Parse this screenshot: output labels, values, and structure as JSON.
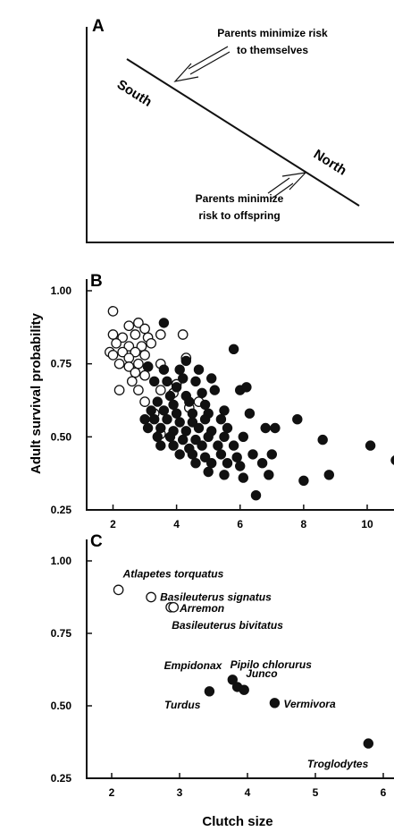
{
  "ylabel": "Adult survival probability",
  "xlabel": "Clutch size",
  "colors": {
    "ink": "#111111",
    "open_fill": "#ffffff",
    "filled": "#111111"
  },
  "chart_data": [
    {
      "type": "diagram",
      "panel": "A",
      "line_labels": {
        "start": "South",
        "end": "North"
      },
      "annotations": [
        {
          "text_lines": [
            "Parents minimize risk",
            "to themselves"
          ]
        },
        {
          "text_lines": [
            "Parents minimize",
            "risk to offspring"
          ]
        }
      ]
    },
    {
      "type": "scatter",
      "panel": "B",
      "xlim": [
        1.2,
        11
      ],
      "ylim": [
        0.25,
        1.0
      ],
      "xticks": [
        2,
        4,
        6,
        8,
        10
      ],
      "yticks": [
        0.25,
        0.5,
        0.75,
        1.0
      ],
      "ytick_labels": [
        "0.25",
        "0.50",
        "0.75",
        "1.00"
      ],
      "series": [
        {
          "marker": "open",
          "points": [
            [
              2.0,
              0.93
            ],
            [
              2.5,
              0.88
            ],
            [
              2.8,
              0.89
            ],
            [
              3.0,
              0.87
            ],
            [
              3.5,
              0.85
            ],
            [
              4.2,
              0.85
            ],
            [
              2.0,
              0.85
            ],
            [
              2.3,
              0.84
            ],
            [
              2.7,
              0.85
            ],
            [
              3.1,
              0.84
            ],
            [
              2.9,
              0.81
            ],
            [
              3.2,
              0.82
            ],
            [
              2.1,
              0.82
            ],
            [
              2.5,
              0.81
            ],
            [
              1.9,
              0.79
            ],
            [
              2.3,
              0.79
            ],
            [
              2.7,
              0.79
            ],
            [
              3.0,
              0.78
            ],
            [
              2.0,
              0.78
            ],
            [
              2.5,
              0.77
            ],
            [
              2.2,
              0.75
            ],
            [
              2.8,
              0.75
            ],
            [
              3.5,
              0.75
            ],
            [
              2.5,
              0.74
            ],
            [
              3.1,
              0.74
            ],
            [
              4.3,
              0.77
            ],
            [
              2.7,
              0.72
            ],
            [
              3.0,
              0.71
            ],
            [
              2.6,
              0.69
            ],
            [
              2.2,
              0.66
            ],
            [
              2.8,
              0.66
            ],
            [
              3.5,
              0.66
            ],
            [
              4.0,
              0.68
            ],
            [
              3.0,
              0.62
            ],
            [
              3.3,
              0.58
            ],
            [
              3.9,
              0.65
            ],
            [
              4.7,
              0.62
            ],
            [
              3.5,
              0.51
            ],
            [
              4.4,
              0.6
            ]
          ]
        },
        {
          "marker": "filled",
          "points": [
            [
              3.6,
              0.89
            ],
            [
              5.8,
              0.8
            ],
            [
              3.1,
              0.74
            ],
            [
              3.6,
              0.73
            ],
            [
              4.1,
              0.73
            ],
            [
              4.3,
              0.76
            ],
            [
              4.7,
              0.73
            ],
            [
              3.3,
              0.69
            ],
            [
              3.7,
              0.69
            ],
            [
              4.2,
              0.7
            ],
            [
              4.6,
              0.69
            ],
            [
              5.1,
              0.7
            ],
            [
              4.0,
              0.67
            ],
            [
              3.8,
              0.64
            ],
            [
              4.3,
              0.64
            ],
            [
              4.8,
              0.65
            ],
            [
              5.2,
              0.66
            ],
            [
              6.0,
              0.66
            ],
            [
              6.2,
              0.67
            ],
            [
              3.4,
              0.62
            ],
            [
              3.9,
              0.61
            ],
            [
              4.4,
              0.62
            ],
            [
              4.9,
              0.61
            ],
            [
              3.2,
              0.59
            ],
            [
              3.6,
              0.59
            ],
            [
              4.0,
              0.58
            ],
            [
              4.5,
              0.58
            ],
            [
              5.0,
              0.58
            ],
            [
              5.5,
              0.59
            ],
            [
              3.0,
              0.56
            ],
            [
              3.3,
              0.56
            ],
            [
              3.7,
              0.56
            ],
            [
              4.1,
              0.55
            ],
            [
              4.5,
              0.55
            ],
            [
              4.9,
              0.56
            ],
            [
              5.4,
              0.56
            ],
            [
              6.3,
              0.58
            ],
            [
              3.1,
              0.53
            ],
            [
              3.5,
              0.53
            ],
            [
              3.9,
              0.52
            ],
            [
              4.3,
              0.52
            ],
            [
              4.7,
              0.53
            ],
            [
              5.1,
              0.52
            ],
            [
              5.6,
              0.53
            ],
            [
              3.4,
              0.5
            ],
            [
              3.8,
              0.5
            ],
            [
              4.2,
              0.49
            ],
            [
              4.6,
              0.49
            ],
            [
              5.0,
              0.5
            ],
            [
              5.5,
              0.5
            ],
            [
              6.1,
              0.5
            ],
            [
              3.5,
              0.47
            ],
            [
              3.9,
              0.47
            ],
            [
              4.4,
              0.46
            ],
            [
              4.8,
              0.47
            ],
            [
              5.3,
              0.47
            ],
            [
              5.8,
              0.47
            ],
            [
              4.1,
              0.44
            ],
            [
              4.5,
              0.44
            ],
            [
              4.9,
              0.43
            ],
            [
              5.4,
              0.44
            ],
            [
              5.9,
              0.43
            ],
            [
              6.4,
              0.44
            ],
            [
              4.6,
              0.41
            ],
            [
              5.1,
              0.41
            ],
            [
              5.6,
              0.41
            ],
            [
              6.0,
              0.4
            ],
            [
              6.7,
              0.41
            ],
            [
              5.0,
              0.38
            ],
            [
              5.5,
              0.37
            ],
            [
              6.1,
              0.36
            ],
            [
              6.5,
              0.3
            ],
            [
              6.9,
              0.37
            ],
            [
              7.0,
              0.44
            ],
            [
              7.1,
              0.53
            ],
            [
              6.8,
              0.53
            ],
            [
              7.8,
              0.56
            ],
            [
              8.0,
              0.35
            ],
            [
              8.6,
              0.49
            ],
            [
              8.8,
              0.37
            ],
            [
              10.1,
              0.47
            ],
            [
              10.9,
              0.42
            ]
          ]
        }
      ]
    },
    {
      "type": "scatter",
      "panel": "C",
      "xlim": [
        1.92,
        6.1
      ],
      "ylim": [
        0.25,
        1.0
      ],
      "xticks": [
        2,
        3,
        4,
        5,
        6
      ],
      "yticks": [
        0.25,
        0.5,
        0.75,
        1.0
      ],
      "ytick_labels": [
        "0.25",
        "0.50",
        "0.75",
        "1.00"
      ],
      "points": [
        {
          "name": "Atlapetes torquatus",
          "x": 2.1,
          "y": 0.9,
          "marker": "open"
        },
        {
          "name": "Basileuterus signatus",
          "x": 2.58,
          "y": 0.875,
          "marker": "open"
        },
        {
          "name": "Arremon",
          "x": 2.87,
          "y": 0.84,
          "marker": "open"
        },
        {
          "name": "Basileuterus bivitatus",
          "x": 2.91,
          "y": 0.84,
          "marker": "open"
        },
        {
          "name": "Empidonax",
          "x": 3.78,
          "y": 0.59,
          "marker": "filled"
        },
        {
          "name": "Pipilo chlorurus",
          "x": 3.85,
          "y": 0.565,
          "marker": "filled"
        },
        {
          "name": "Junco",
          "x": 3.95,
          "y": 0.555,
          "marker": "filled"
        },
        {
          "name": "Turdus",
          "x": 3.44,
          "y": 0.55,
          "marker": "filled"
        },
        {
          "name": "Vermivora",
          "x": 4.4,
          "y": 0.51,
          "marker": "filled"
        },
        {
          "name": "Troglodytes",
          "x": 5.78,
          "y": 0.37,
          "marker": "filled"
        }
      ]
    }
  ]
}
